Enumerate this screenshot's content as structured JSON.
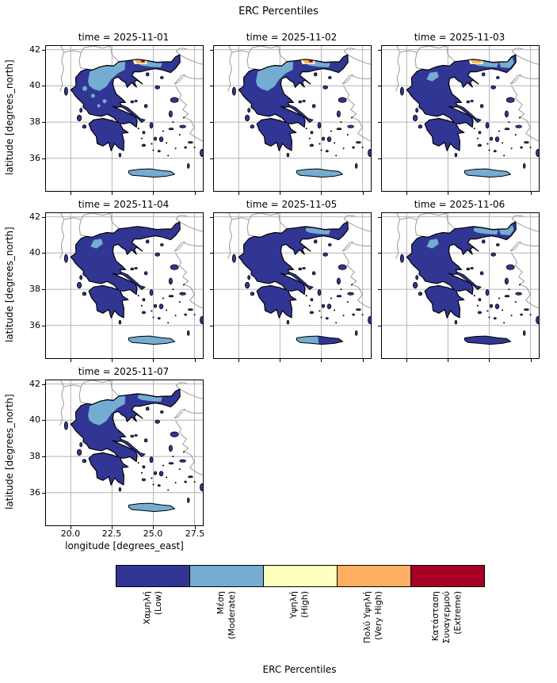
{
  "figure": {
    "title": "ERC Percentiles"
  },
  "axes": {
    "ylabel": "latitude [degrees_north]",
    "xlabel": "longitude [degrees_east]",
    "yticks": [
      "42",
      "40",
      "38",
      "36"
    ],
    "ytick_lats": [
      42,
      40,
      38,
      36
    ],
    "xticks": [
      "20.0",
      "22.5",
      "25.0",
      "27.5"
    ],
    "xtick_lons": [
      20.0,
      22.5,
      25.0,
      27.5
    ],
    "xlim": [
      18.5,
      28.0
    ],
    "ylim": [
      34.2,
      42.2
    ]
  },
  "colors": {
    "low": "#313695",
    "moderate": "#74add1",
    "high": "#ffffbf",
    "very_high": "#fdae61",
    "extreme": "#a50026",
    "coastline": "#000000",
    "neighbor_coast": "#9a9a9a",
    "gridline": "#b4b4b4",
    "background": "#ffffff"
  },
  "panels": [
    {
      "title": "time = 2025-11-01",
      "overlays": [
        "west_macedonia",
        "east_macedonia",
        "epirus_specks",
        "crete_full"
      ],
      "alert": "extreme",
      "show_ytick_labels": true,
      "show_xtick_labels": false
    },
    {
      "title": "time = 2025-11-02",
      "overlays": [
        "west_macedonia",
        "east_macedonia",
        "crete_full"
      ],
      "alert": "extreme",
      "show_ytick_labels": false,
      "show_xtick_labels": false
    },
    {
      "title": "time = 2025-11-03",
      "overlays": [
        "nw_small",
        "east_macedonia",
        "thrace",
        "crete_full"
      ],
      "alert": "very_high",
      "show_ytick_labels": false,
      "show_xtick_labels": false
    },
    {
      "title": "time = 2025-11-04",
      "overlays": [
        "nw_small",
        "crete_full"
      ],
      "alert": null,
      "show_ytick_labels": true,
      "show_xtick_labels": false
    },
    {
      "title": "time = 2025-11-05",
      "overlays": [
        "east_macedonia",
        "crete_west"
      ],
      "alert": null,
      "show_ytick_labels": false,
      "show_xtick_labels": false
    },
    {
      "title": "time = 2025-11-06",
      "overlays": [
        "east_macedonia",
        "thrace",
        "nw_small"
      ],
      "alert": null,
      "show_ytick_labels": false,
      "show_xtick_labels": false
    },
    {
      "title": "time = 2025-11-07",
      "overlays": [
        "west_macedonia",
        "east_macedonia",
        "crete_full"
      ],
      "alert": null,
      "show_ytick_labels": true,
      "show_xtick_labels": true
    }
  ],
  "colorbar": {
    "title": "ERC Percentiles",
    "categories": [
      {
        "lines": [
          "Χαμηλή",
          "(Low)"
        ],
        "color": "#313695"
      },
      {
        "lines": [
          "Μέση",
          "(Moderate)"
        ],
        "color": "#74add1"
      },
      {
        "lines": [
          "Υψηλή",
          "(High)"
        ],
        "color": "#ffffbf"
      },
      {
        "lines": [
          "Πολύ Υψηλή",
          "(Very High)"
        ],
        "color": "#fdae61"
      },
      {
        "lines": [
          "Κατάσταση",
          "Συναγερμού",
          "(Extreme)"
        ],
        "color": "#a50026"
      }
    ]
  },
  "chart_data": {
    "type": "heatmap",
    "subtype": "faceted categorical fire-danger map of Greece",
    "title": "ERC Percentiles",
    "facet_variable": "time",
    "facets": [
      "2025-11-01",
      "2025-11-02",
      "2025-11-03",
      "2025-11-04",
      "2025-11-05",
      "2025-11-06",
      "2025-11-07"
    ],
    "grid_shape": "3 columns x 3 rows, 7 panels used",
    "xlabel": "longitude [degrees_east]",
    "ylabel": "latitude [degrees_north]",
    "xticks": [
      20.0,
      22.5,
      25.0,
      27.5
    ],
    "yticks": [
      36,
      38,
      40,
      42
    ],
    "xlim": [
      18.5,
      28.0
    ],
    "ylim": [
      34.2,
      42.2
    ],
    "region": "Greece",
    "grid": true,
    "legend_position": "bottom horizontal colorbar",
    "categories": [
      {
        "label": "Χαμηλή (Low)",
        "color": "#313695"
      },
      {
        "label": "Μέση (Moderate)",
        "color": "#74add1"
      },
      {
        "label": "Υψηλή (High)",
        "color": "#ffffbf"
      },
      {
        "label": "Πολύ Υψηλή (Very High)",
        "color": "#fdae61"
      },
      {
        "label": "Κατάσταση Συναγερμού (Extreme)",
        "color": "#a50026"
      }
    ],
    "facet_summaries": [
      {
        "time": "2025-11-01",
        "pattern": "Mostly Low; Moderate over much of northern Greece, scattered central spots and Crete; small Very High/Extreme hotspot on the northern border near 24.2E 41.4N"
      },
      {
        "time": "2025-11-02",
        "pattern": "Mostly Low; Moderate across northern Greece and Crete; Very High/Extreme hotspot persists near 24.3E 41.4N"
      },
      {
        "time": "2025-11-03",
        "pattern": "Mostly Low; Moderate in northwest, eastern Macedonia, Thrace and Crete; smaller High/Very High hotspot near 24.2E 41.4N"
      },
      {
        "time": "2025-11-04",
        "pattern": "Mostly Low; small Moderate patches in the northwest; Moderate over Crete"
      },
      {
        "time": "2025-11-05",
        "pattern": "Mostly Low; Moderate patches in eastern Macedonia; Moderate over western Crete"
      },
      {
        "time": "2025-11-06",
        "pattern": "Mostly Low; Moderate over eastern Macedonia and Thrace plus small northwest patches"
      },
      {
        "time": "2025-11-07",
        "pattern": "Mostly Low; Moderate across northern Greece and Crete"
      }
    ]
  }
}
